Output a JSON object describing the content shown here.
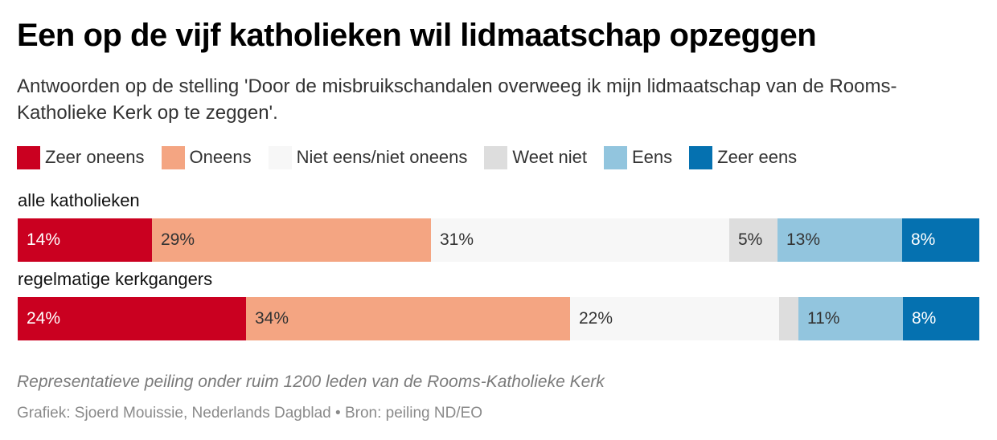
{
  "header": {
    "title": "Een op de vijf katholieken wil lidmaatschap opzeggen",
    "subtitle": "Antwoorden op de stelling 'Door de misbruikschandalen overweeg ik mijn lidmaatschap van de Rooms-Katholieke Kerk op te zeggen'."
  },
  "footer": {
    "note": "Representatieve peiling onder ruim 1200 leden van de Rooms-Katholieke Kerk",
    "credit": "Grafiek: Sjoerd Mouissie, Nederlands Dagblad • Bron: peiling ND/EO"
  },
  "chart_data": {
    "type": "bar",
    "orientation": "horizontal",
    "stacked": true,
    "unit": "%",
    "legend_position": "top",
    "categories": [
      "alle katholieken",
      "regelmatige kerkgangers"
    ],
    "series": [
      {
        "name": "Zeer oneens",
        "color": "#ca0020",
        "text_color": "#ffffff",
        "values": [
          14,
          24
        ],
        "labels": [
          "14%",
          "24%"
        ]
      },
      {
        "name": "Oneens",
        "color": "#f4a582",
        "text_color": "#333333",
        "values": [
          29,
          34
        ],
        "labels": [
          "29%",
          "34%"
        ]
      },
      {
        "name": "Niet eens/niet oneens",
        "color": "#f7f7f7",
        "text_color": "#333333",
        "values": [
          31,
          22
        ],
        "labels": [
          "31%",
          "22%"
        ]
      },
      {
        "name": "Weet niet",
        "color": "#dddddd",
        "text_color": "#333333",
        "values": [
          5,
          2
        ],
        "labels": [
          "5%",
          ""
        ]
      },
      {
        "name": "Eens",
        "color": "#92c5de",
        "text_color": "#333333",
        "values": [
          13,
          11
        ],
        "labels": [
          "13%",
          "11%"
        ]
      },
      {
        "name": "Zeer eens",
        "color": "#0571b0",
        "text_color": "#ffffff",
        "values": [
          8,
          8
        ],
        "labels": [
          "8%",
          "8%"
        ]
      }
    ]
  }
}
